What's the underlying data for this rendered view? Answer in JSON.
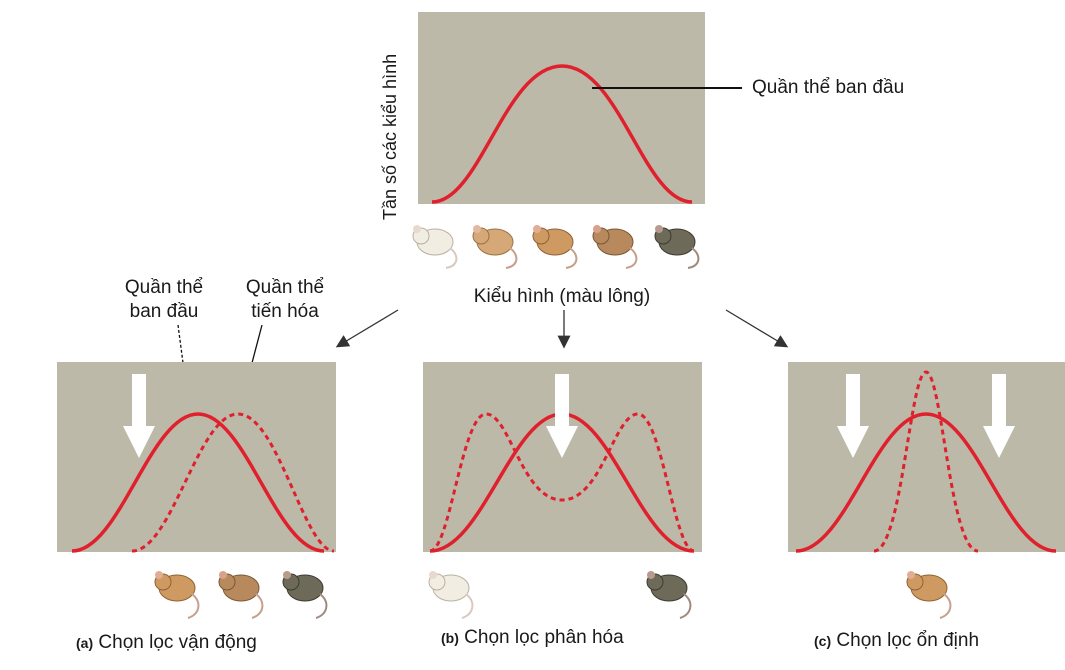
{
  "top_chart": {
    "y_axis_label": "Tần số các kiểu hình",
    "x_axis_label": "Kiểu hình (màu lông)",
    "callout": "Quần thể ban đầu"
  },
  "legend": {
    "original": "Quần thể\nban đầu",
    "evolved": "Quần thể\ntiến hóa"
  },
  "panels": [
    {
      "letter": "(a)",
      "title": "Chọn lọc vận động"
    },
    {
      "letter": "(b)",
      "title": "Chọn lọc phân hóa"
    },
    {
      "letter": "(c)",
      "title": "Chọn lọc ổn định"
    }
  ],
  "colors": {
    "panel_bg": "#bcb9a9",
    "curve": "#e0202c",
    "arrow": "#ffffff"
  }
}
